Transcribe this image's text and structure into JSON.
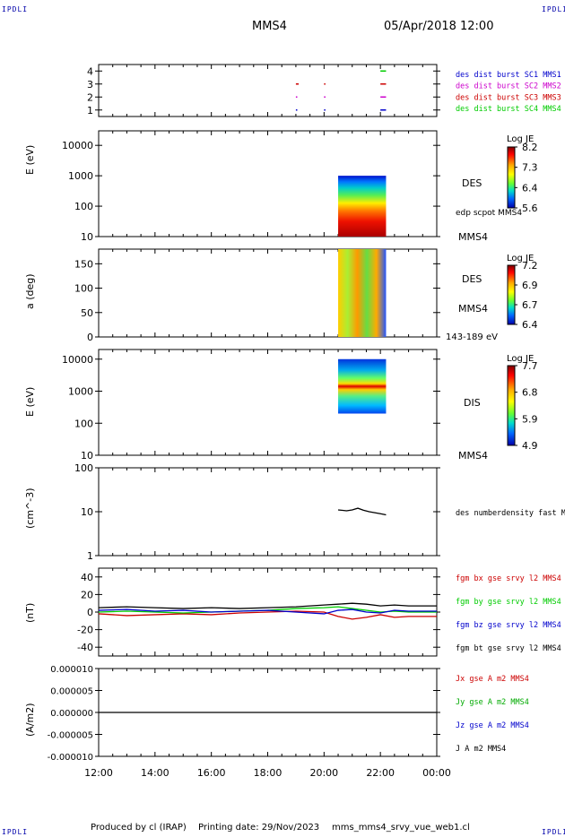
{
  "corner_logo": "IPDLI",
  "header": {
    "spacecraft": "MMS4",
    "datetime": "05/Apr/2018 12:00"
  },
  "footer": {
    "produced_by": "Produced by cl (IRAP)",
    "printing_date": "Printing date: 29/Nov/2023",
    "product": "mms_mms4_srvy_vue_web1.cl"
  },
  "time_axis": {
    "ticks": [
      "12:00",
      "14:00",
      "16:00",
      "18:00",
      "20:00",
      "22:00",
      "00:00"
    ],
    "range_hours": [
      0,
      12
    ]
  },
  "chart_data": [
    {
      "type": "scatter",
      "name": "availability",
      "y_ticks": [
        "1",
        "2",
        "3",
        "4"
      ],
      "ylim": [
        0.5,
        4.5
      ],
      "legend": [
        {
          "label": "des dist burst SC1 MMS1",
          "color": "#0000cc"
        },
        {
          "label": "des dist burst SC2 MMS2",
          "color": "#cc00cc"
        },
        {
          "label": "des dist burst SC3 MMS3",
          "color": "#cc0000"
        },
        {
          "label": "des dist burst SC4 MMS4",
          "color": "#00cc00"
        }
      ],
      "marks": [
        {
          "level": 1,
          "t": 7.0,
          "w": 0.05,
          "color": "#0000cc"
        },
        {
          "level": 1,
          "t": 8.0,
          "w": 0.05,
          "color": "#0000cc"
        },
        {
          "level": 1,
          "t": 10.0,
          "w": 0.2,
          "color": "#0000cc"
        },
        {
          "level": 2,
          "t": 7.0,
          "w": 0.05,
          "color": "#cc00cc"
        },
        {
          "level": 2,
          "t": 8.0,
          "w": 0.05,
          "color": "#cc00cc"
        },
        {
          "level": 2,
          "t": 10.0,
          "w": 0.2,
          "color": "#cc00cc"
        },
        {
          "level": 3,
          "t": 7.0,
          "w": 0.1,
          "color": "#cc0000"
        },
        {
          "level": 3,
          "t": 8.0,
          "w": 0.05,
          "color": "#cc0000"
        },
        {
          "level": 3,
          "t": 10.0,
          "w": 0.2,
          "color": "#cc0000"
        },
        {
          "level": 4,
          "t": 10.0,
          "w": 0.2,
          "color": "#00cc00"
        }
      ]
    },
    {
      "type": "heatmap",
      "name": "des-energy",
      "ylabel": "E (eV)",
      "y_scale": "log",
      "y_ticks": [
        "10",
        "100",
        "1000",
        "10000"
      ],
      "ylim": [
        10,
        30000
      ],
      "data_range": {
        "t": [
          8.5,
          10.2
        ],
        "y": [
          10,
          1000
        ]
      },
      "label_right": "DES",
      "annotation": "edp scpot MMS4",
      "bottom_right": "MMS4",
      "colorbar": {
        "title": "Log JE",
        "ticks": [
          "8.2",
          "7.3",
          "6.4",
          "5.6"
        ]
      }
    },
    {
      "type": "heatmap",
      "name": "des-pitch",
      "ylabel": "a (deg)",
      "y_ticks": [
        "0",
        "50",
        "100",
        "150"
      ],
      "ylim": [
        0,
        180
      ],
      "data_range": {
        "t": [
          8.5,
          10.2
        ],
        "y": [
          0,
          180
        ]
      },
      "label_right": "DES",
      "label_right2": "MMS4",
      "bottom_right": "143-189 eV",
      "colorbar": {
        "title": "Log JE",
        "ticks": [
          "7.2",
          "6.9",
          "6.7",
          "6.4"
        ]
      }
    },
    {
      "type": "heatmap",
      "name": "dis-energy",
      "ylabel": "E (eV)",
      "y_scale": "log",
      "y_ticks": [
        "10",
        "100",
        "1000",
        "10000"
      ],
      "ylim": [
        10,
        20000
      ],
      "data_range": {
        "t": [
          8.5,
          10.2
        ],
        "y": [
          200,
          10000
        ]
      },
      "label_right": "DIS",
      "bottom_right": "MMS4",
      "colorbar": {
        "title": "Log JE",
        "ticks": [
          "7.7",
          "6.8",
          "5.9",
          "4.9"
        ]
      }
    },
    {
      "type": "line",
      "name": "density",
      "ylabel": "(cm^-3)",
      "y_scale": "log",
      "y_ticks": [
        "1",
        "10",
        "100"
      ],
      "ylim": [
        1,
        100
      ],
      "legend": [
        {
          "label": "des numberdensity fast M",
          "color": "#000000"
        }
      ],
      "series": [
        {
          "color": "#000000",
          "t": [
            8.5,
            8.8,
            9.0,
            9.2,
            9.4,
            9.6,
            9.8,
            10.0,
            10.2
          ],
          "values": [
            11,
            10.5,
            11,
            12,
            10.8,
            10,
            9.5,
            9,
            8.5
          ]
        }
      ]
    },
    {
      "type": "line",
      "name": "magnetic-field",
      "ylabel": "(nT)",
      "y_ticks": [
        "-40",
        "-20",
        "0",
        "20",
        "40"
      ],
      "ylim": [
        -50,
        50
      ],
      "legend": [
        {
          "label": "fgm bx gse srvy l2 MMS4",
          "color": "#cc0000"
        },
        {
          "label": "fgm by gse srvy l2 MMS4",
          "color": "#00cc00"
        },
        {
          "label": "fgm bz gse srvy l2 MMS4",
          "color": "#0000cc"
        },
        {
          "label": "fgm bt gse srvy l2 MMS4",
          "color": "#000000"
        }
      ],
      "series": [
        {
          "color": "#cc0000",
          "t": [
            0,
            1,
            2,
            3,
            4,
            5,
            6,
            7,
            8,
            8.5,
            9,
            9.5,
            10,
            10.5,
            11,
            12
          ],
          "values": [
            -2,
            -4,
            -3,
            -2,
            -3,
            -1,
            0,
            1,
            0,
            -5,
            -8,
            -6,
            -3,
            -6,
            -5,
            -5
          ]
        },
        {
          "color": "#00cc00",
          "t": [
            0,
            1,
            2,
            3,
            4,
            5,
            6,
            7,
            8,
            8.5,
            9,
            9.5,
            10,
            10.5,
            11,
            12
          ],
          "values": [
            0,
            1,
            0,
            -1,
            0,
            1,
            2,
            4,
            5,
            6,
            4,
            2,
            0,
            1,
            0,
            0
          ]
        },
        {
          "color": "#0000cc",
          "t": [
            0,
            1,
            2,
            3,
            4,
            5,
            6,
            7,
            8,
            8.5,
            9,
            9.5,
            10,
            10.5,
            11,
            12
          ],
          "values": [
            2,
            3,
            1,
            2,
            0,
            1,
            2,
            0,
            -2,
            2,
            3,
            0,
            -1,
            2,
            1,
            1
          ]
        },
        {
          "color": "#000000",
          "t": [
            0,
            1,
            2,
            3,
            4,
            5,
            6,
            7,
            8,
            8.5,
            9,
            9.5,
            10,
            10.5,
            11,
            12
          ],
          "values": [
            5,
            6,
            5,
            4,
            5,
            4,
            5,
            6,
            8,
            9,
            10,
            9,
            7,
            8,
            7,
            7
          ]
        }
      ]
    },
    {
      "type": "line",
      "name": "current-density",
      "ylabel": "(A/m2)",
      "y_ticks": [
        "-0.000010",
        "-0.000005",
        "0.000000",
        "0.000005",
        "0.000010"
      ],
      "ylim": [
        -1e-05,
        1e-05
      ],
      "legend": [
        {
          "label": "Jx gse A m2 MMS4",
          "color": "#cc0000"
        },
        {
          "label": "Jy gse A m2 MMS4",
          "color": "#00aa00"
        },
        {
          "label": "Jz gse A m2 MMS4",
          "color": "#0000cc"
        },
        {
          "label": "J A m2 MMS4",
          "color": "#000000"
        }
      ],
      "series": [
        {
          "color": "#000000",
          "t": [
            0,
            12
          ],
          "values": [
            0,
            0
          ]
        }
      ]
    }
  ]
}
